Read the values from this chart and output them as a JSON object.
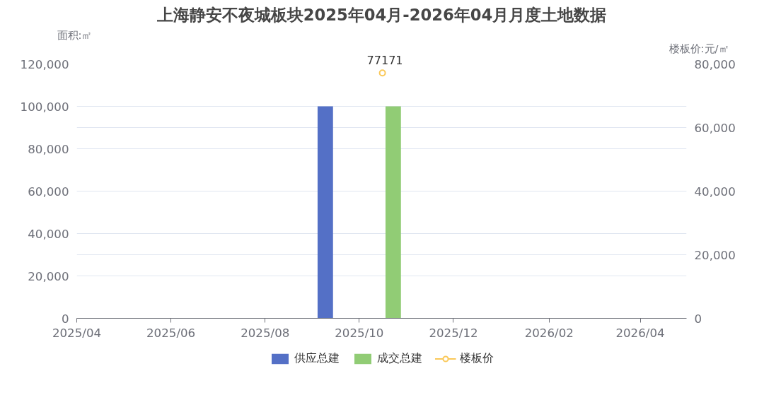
{
  "chart_data": {
    "type": "bar",
    "title": "上海静安不夜城板块2025年04月-2026年04月月度土地数据",
    "ylabel": "面积:㎡",
    "y2label": "楼板价:元/㎡",
    "xlim": [
      "2025-04-01",
      "2026-05-01"
    ],
    "xticks": [
      {
        "value": "2025-04",
        "label": "2025/04"
      },
      {
        "value": "2025-06",
        "label": "2025/06"
      },
      {
        "value": "2025-08",
        "label": "2025/08"
      },
      {
        "value": "2025-10",
        "label": "2025/10"
      },
      {
        "value": "2025-12",
        "label": "2025/12"
      },
      {
        "value": "2026-02",
        "label": "2026/02"
      },
      {
        "value": "2026-04",
        "label": "2026/04"
      }
    ],
    "ylim": [
      0,
      120000
    ],
    "yticks": [
      {
        "value": 0,
        "label": "0"
      },
      {
        "value": 20000,
        "label": "20,000"
      },
      {
        "value": 40000,
        "label": "40,000"
      },
      {
        "value": 60000,
        "label": "60,000"
      },
      {
        "value": 80000,
        "label": "80,000"
      },
      {
        "value": 100000,
        "label": "100,000"
      },
      {
        "value": 120000,
        "label": "120,000"
      }
    ],
    "y2lim": [
      0,
      80000
    ],
    "y2ticks": [
      {
        "value": 0,
        "label": "0"
      },
      {
        "value": 20000,
        "label": "20,000"
      },
      {
        "value": 40000,
        "label": "40,000"
      },
      {
        "value": 60000,
        "label": "60,000"
      },
      {
        "value": 80000,
        "label": "80,000"
      }
    ],
    "grid": "y",
    "legend": "bottom",
    "series": [
      {
        "name": "供应总建",
        "color": "#5470c6",
        "x": [
          "2025-09-09"
        ],
        "values": [
          100000
        ]
      },
      {
        "name": "成交总建",
        "color": "#91cc75",
        "x": [
          "2025-10-23"
        ],
        "values": [
          100000
        ]
      },
      {
        "name": "楼板价",
        "type": "line",
        "axis": "y2",
        "marker": "circle",
        "color": "#fac858",
        "x": [
          "2025-10-16"
        ],
        "values": [
          77171
        ],
        "value_labels": [
          "77171"
        ]
      }
    ]
  }
}
